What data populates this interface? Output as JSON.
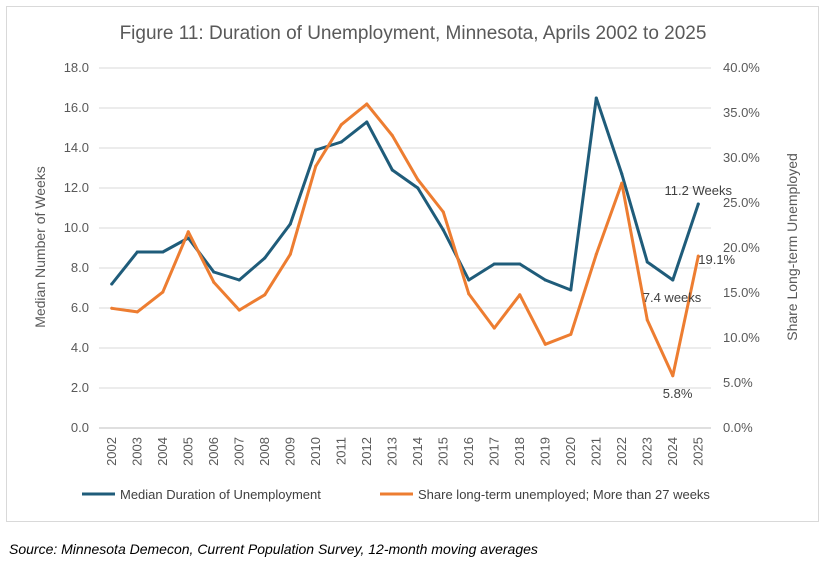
{
  "chart_data": {
    "type": "line",
    "title": "Figure 11: Duration of Unemployment, Minnesota, Aprils 2002 to 2025",
    "ylabel": "Median Number of Weeks",
    "y2label": "Share Long-term Unemployed",
    "ylim": [
      0,
      18
    ],
    "y2lim": [
      0,
      40
    ],
    "yticks": [
      "0.0",
      "2.0",
      "4.0",
      "6.0",
      "8.0",
      "10.0",
      "12.0",
      "14.0",
      "16.0",
      "18.0"
    ],
    "y2ticks": [
      "0.0%",
      "5.0%",
      "10.0%",
      "15.0%",
      "20.0%",
      "25.0%",
      "30.0%",
      "35.0%",
      "40.0%"
    ],
    "categories": [
      "2002",
      "2003",
      "2004",
      "2005",
      "2006",
      "2007",
      "2008",
      "2009",
      "2010",
      "2011",
      "2012",
      "2013",
      "2014",
      "2015",
      "2016",
      "2017",
      "2018",
      "2019",
      "2020",
      "2021",
      "2022",
      "2023",
      "2024",
      "2025"
    ],
    "series": [
      {
        "name": "Median Duration of Unemployment",
        "axis": "left",
        "color": "#1f5c7a",
        "values": [
          7.2,
          8.8,
          8.8,
          9.5,
          7.8,
          7.4,
          8.5,
          10.2,
          13.9,
          14.3,
          15.3,
          12.9,
          12.0,
          9.9,
          7.4,
          8.2,
          8.2,
          7.4,
          6.9,
          16.5,
          12.7,
          8.3,
          7.4,
          11.2
        ]
      },
      {
        "name": "Share long-term unemployed; More than 27 weeks",
        "axis": "right",
        "color": "#ed7d31",
        "values": [
          13.3,
          12.9,
          15.1,
          21.8,
          16.2,
          13.1,
          14.8,
          19.3,
          29.1,
          33.7,
          36.0,
          32.5,
          27.6,
          24.0,
          14.9,
          11.1,
          14.8,
          9.3,
          10.4,
          19.3,
          27.2,
          12.0,
          5.8,
          19.1
        ]
      }
    ],
    "annotations": [
      {
        "text": "11.2 Weeks",
        "series": 0,
        "index": 23
      },
      {
        "text": "7.4 weeks",
        "series": 0,
        "index": 22
      },
      {
        "text": "19.1%",
        "series": 1,
        "index": 23
      },
      {
        "text": "5.8%",
        "series": 1,
        "index": 22
      }
    ],
    "grid": true,
    "legend": "bottom"
  },
  "source_note": "Source: Minnesota Demecon, Current Population Survey, 12-month moving averages"
}
